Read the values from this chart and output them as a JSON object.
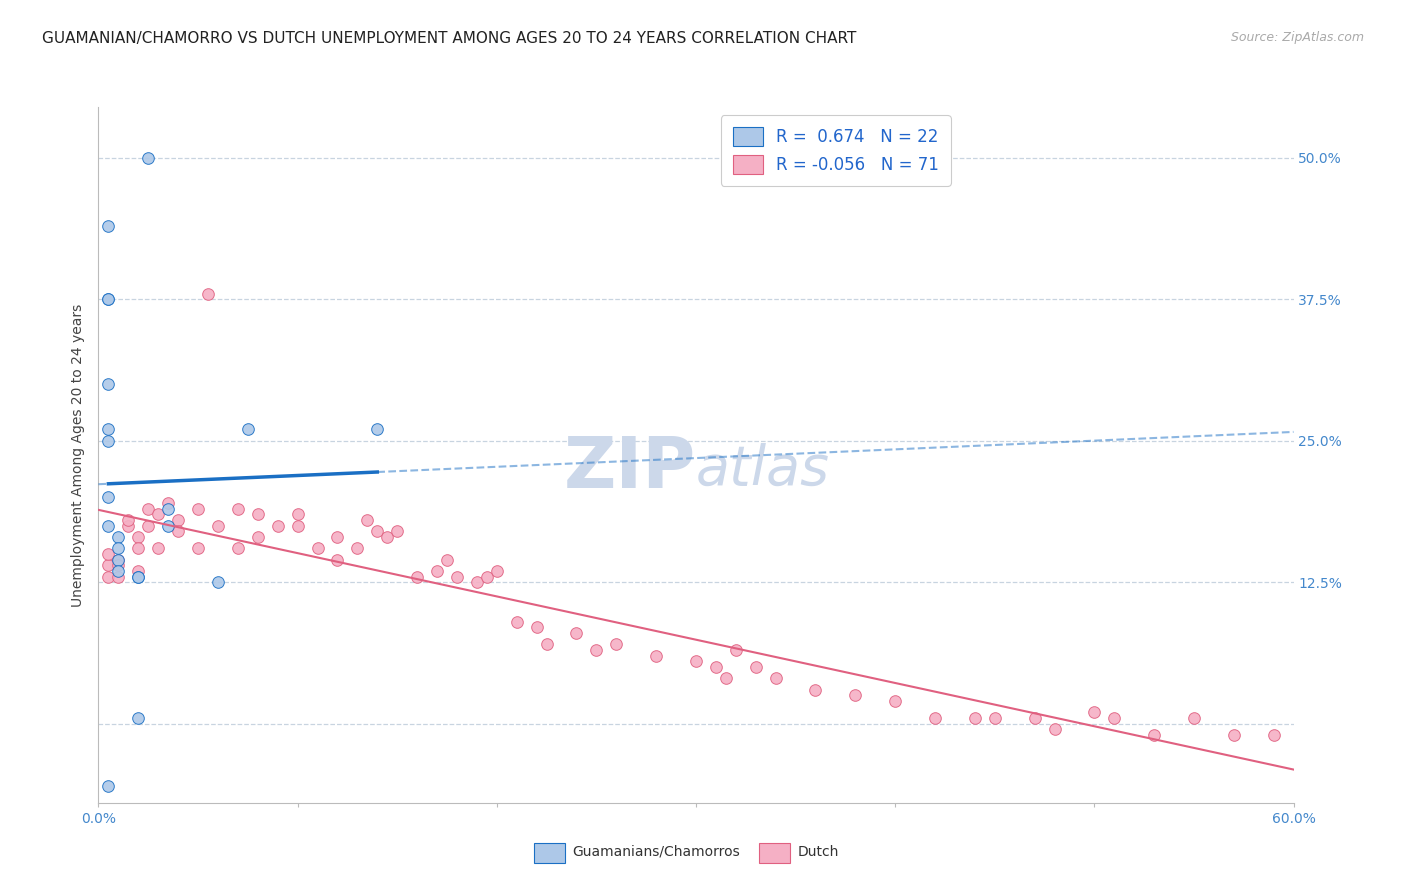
{
  "title": "GUAMANIAN/CHAMORRO VS DUTCH UNEMPLOYMENT AMONG AGES 20 TO 24 YEARS CORRELATION CHART",
  "source": "Source: ZipAtlas.com",
  "ylabel": "Unemployment Among Ages 20 to 24 years",
  "ytick_labels": [
    "",
    "12.5%",
    "25.0%",
    "37.5%",
    "50.0%"
  ],
  "ytick_values": [
    0,
    0.125,
    0.25,
    0.375,
    0.5
  ],
  "xlim": [
    0.0,
    0.6
  ],
  "ylim": [
    -0.07,
    0.545
  ],
  "legend_blue_label": "Guamanians/Chamorros",
  "legend_pink_label": "Dutch",
  "R_blue": "0.674",
  "N_blue": "22",
  "R_pink": "-0.056",
  "N_pink": "71",
  "blue_color": "#adc8e8",
  "pink_color": "#f5b0c5",
  "line_blue_color": "#1a6fc4",
  "line_pink_color": "#e06080",
  "background_color": "#ffffff",
  "watermark_color": "#ccd8ea",
  "grid_color": "#c8d4e0",
  "blue_scatter_x": [
    0.025,
    0.005,
    0.005,
    0.005,
    0.005,
    0.005,
    0.005,
    0.005,
    0.005,
    0.01,
    0.01,
    0.01,
    0.01,
    0.02,
    0.02,
    0.035,
    0.035,
    0.06,
    0.075,
    0.14,
    0.005,
    0.02
  ],
  "blue_scatter_y": [
    0.5,
    0.44,
    0.375,
    0.375,
    0.3,
    0.26,
    0.25,
    0.2,
    0.175,
    0.165,
    0.155,
    0.145,
    0.135,
    0.13,
    0.13,
    0.175,
    0.19,
    0.125,
    0.26,
    0.26,
    -0.055,
    0.005
  ],
  "pink_scatter_x": [
    0.005,
    0.005,
    0.005,
    0.01,
    0.01,
    0.01,
    0.015,
    0.015,
    0.02,
    0.02,
    0.02,
    0.025,
    0.025,
    0.03,
    0.03,
    0.035,
    0.04,
    0.04,
    0.05,
    0.05,
    0.055,
    0.06,
    0.07,
    0.07,
    0.08,
    0.08,
    0.09,
    0.1,
    0.1,
    0.11,
    0.12,
    0.12,
    0.13,
    0.135,
    0.14,
    0.145,
    0.15,
    0.16,
    0.17,
    0.175,
    0.18,
    0.19,
    0.195,
    0.2,
    0.21,
    0.22,
    0.225,
    0.24,
    0.25,
    0.26,
    0.28,
    0.3,
    0.31,
    0.315,
    0.32,
    0.33,
    0.34,
    0.36,
    0.38,
    0.4,
    0.42,
    0.44,
    0.45,
    0.47,
    0.48,
    0.5,
    0.51,
    0.53,
    0.55,
    0.57,
    0.59
  ],
  "pink_scatter_y": [
    0.14,
    0.13,
    0.15,
    0.13,
    0.145,
    0.14,
    0.175,
    0.18,
    0.165,
    0.135,
    0.155,
    0.19,
    0.175,
    0.155,
    0.185,
    0.195,
    0.18,
    0.17,
    0.19,
    0.155,
    0.38,
    0.175,
    0.19,
    0.155,
    0.185,
    0.165,
    0.175,
    0.185,
    0.175,
    0.155,
    0.165,
    0.145,
    0.155,
    0.18,
    0.17,
    0.165,
    0.17,
    0.13,
    0.135,
    0.145,
    0.13,
    0.125,
    0.13,
    0.135,
    0.09,
    0.085,
    0.07,
    0.08,
    0.065,
    0.07,
    0.06,
    0.055,
    0.05,
    0.04,
    0.065,
    0.05,
    0.04,
    0.03,
    0.025,
    0.02,
    0.005,
    0.005,
    0.005,
    0.005,
    -0.005,
    0.01,
    0.005,
    -0.01,
    0.005,
    -0.01,
    -0.01
  ],
  "title_fontsize": 11,
  "axis_fontsize": 10,
  "source_fontsize": 9,
  "marker_size": 70
}
